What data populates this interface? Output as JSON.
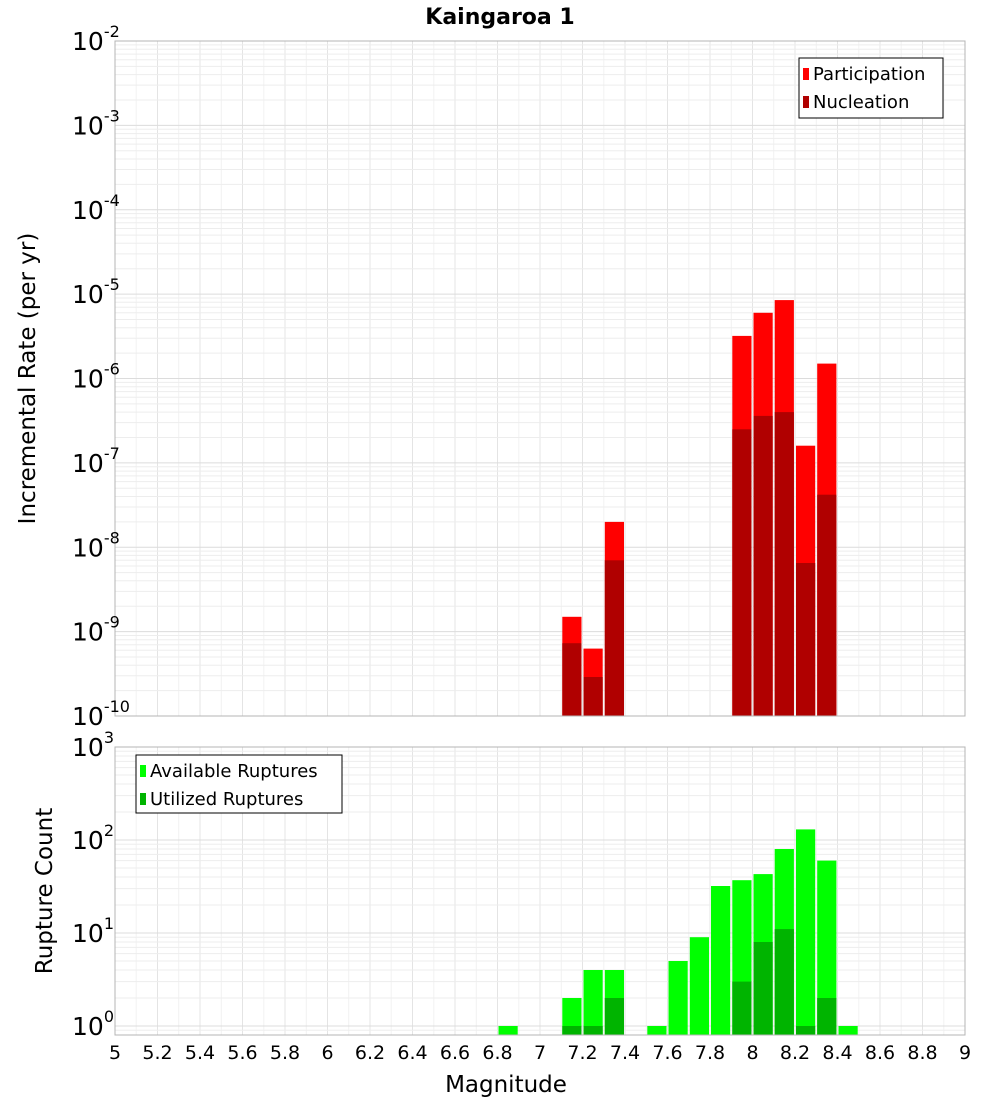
{
  "chart_data": [
    {
      "type": "bar",
      "title": "Kaingaroa 1",
      "xlabel": "",
      "ylabel": "Incremental Rate (per yr)",
      "yscale": "log",
      "xlim": [
        5,
        9
      ],
      "ylim": [
        1e-10,
        0.01
      ],
      "ytick_exponents": [
        -10,
        -9,
        -8,
        -7,
        -6,
        -5,
        -4,
        -3,
        -2
      ],
      "legend_position": "top-right",
      "grid": true,
      "series": [
        {
          "name": "Participation",
          "color": "#ff0000",
          "x": [
            7.15,
            7.25,
            7.35,
            7.95,
            8.05,
            8.15,
            8.25,
            8.35
          ],
          "values": [
            1.5e-09,
            6.3e-10,
            2e-08,
            3.2e-06,
            6e-06,
            8.5e-06,
            1.6e-07,
            1.5e-06
          ]
        },
        {
          "name": "Nucleation",
          "color": "#b00000",
          "x": [
            7.15,
            7.25,
            7.35,
            7.95,
            8.05,
            8.15,
            8.25,
            8.35
          ],
          "values": [
            7.3e-10,
            2.9e-10,
            7e-09,
            2.5e-07,
            3.6e-07,
            4e-07,
            6.5e-09,
            4.2e-08
          ]
        }
      ]
    },
    {
      "type": "bar",
      "title": "",
      "xlabel": "Magnitude",
      "ylabel": "Rupture Count",
      "yscale": "log",
      "xlim": [
        5,
        9
      ],
      "ylim": [
        0.8,
        1000
      ],
      "ytick_exponents": [
        0,
        1,
        2,
        3
      ],
      "xticks": [
        "5",
        "5.2",
        "5.4",
        "5.6",
        "5.8",
        "6",
        "6.2",
        "6.4",
        "6.6",
        "6.8",
        "7",
        "7.2",
        "7.4",
        "7.6",
        "7.8",
        "8",
        "8.2",
        "8.4",
        "8.6",
        "8.8",
        "9"
      ],
      "legend_position": "top-left",
      "grid": true,
      "series": [
        {
          "name": "Available Ruptures",
          "color": "#00ff00",
          "x": [
            6.85,
            7.15,
            7.25,
            7.35,
            7.55,
            7.65,
            7.75,
            7.85,
            7.95,
            8.05,
            8.15,
            8.25,
            8.35,
            8.45
          ],
          "values": [
            1,
            2,
            4,
            4,
            1,
            5,
            9,
            32,
            37,
            43,
            80,
            130,
            60,
            1
          ]
        },
        {
          "name": "Utilized Ruptures",
          "color": "#00b400",
          "x": [
            7.15,
            7.25,
            7.35,
            7.95,
            8.05,
            8.15,
            8.25,
            8.35
          ],
          "values": [
            1,
            1,
            2,
            3,
            8,
            11,
            1,
            2
          ]
        }
      ]
    }
  ]
}
